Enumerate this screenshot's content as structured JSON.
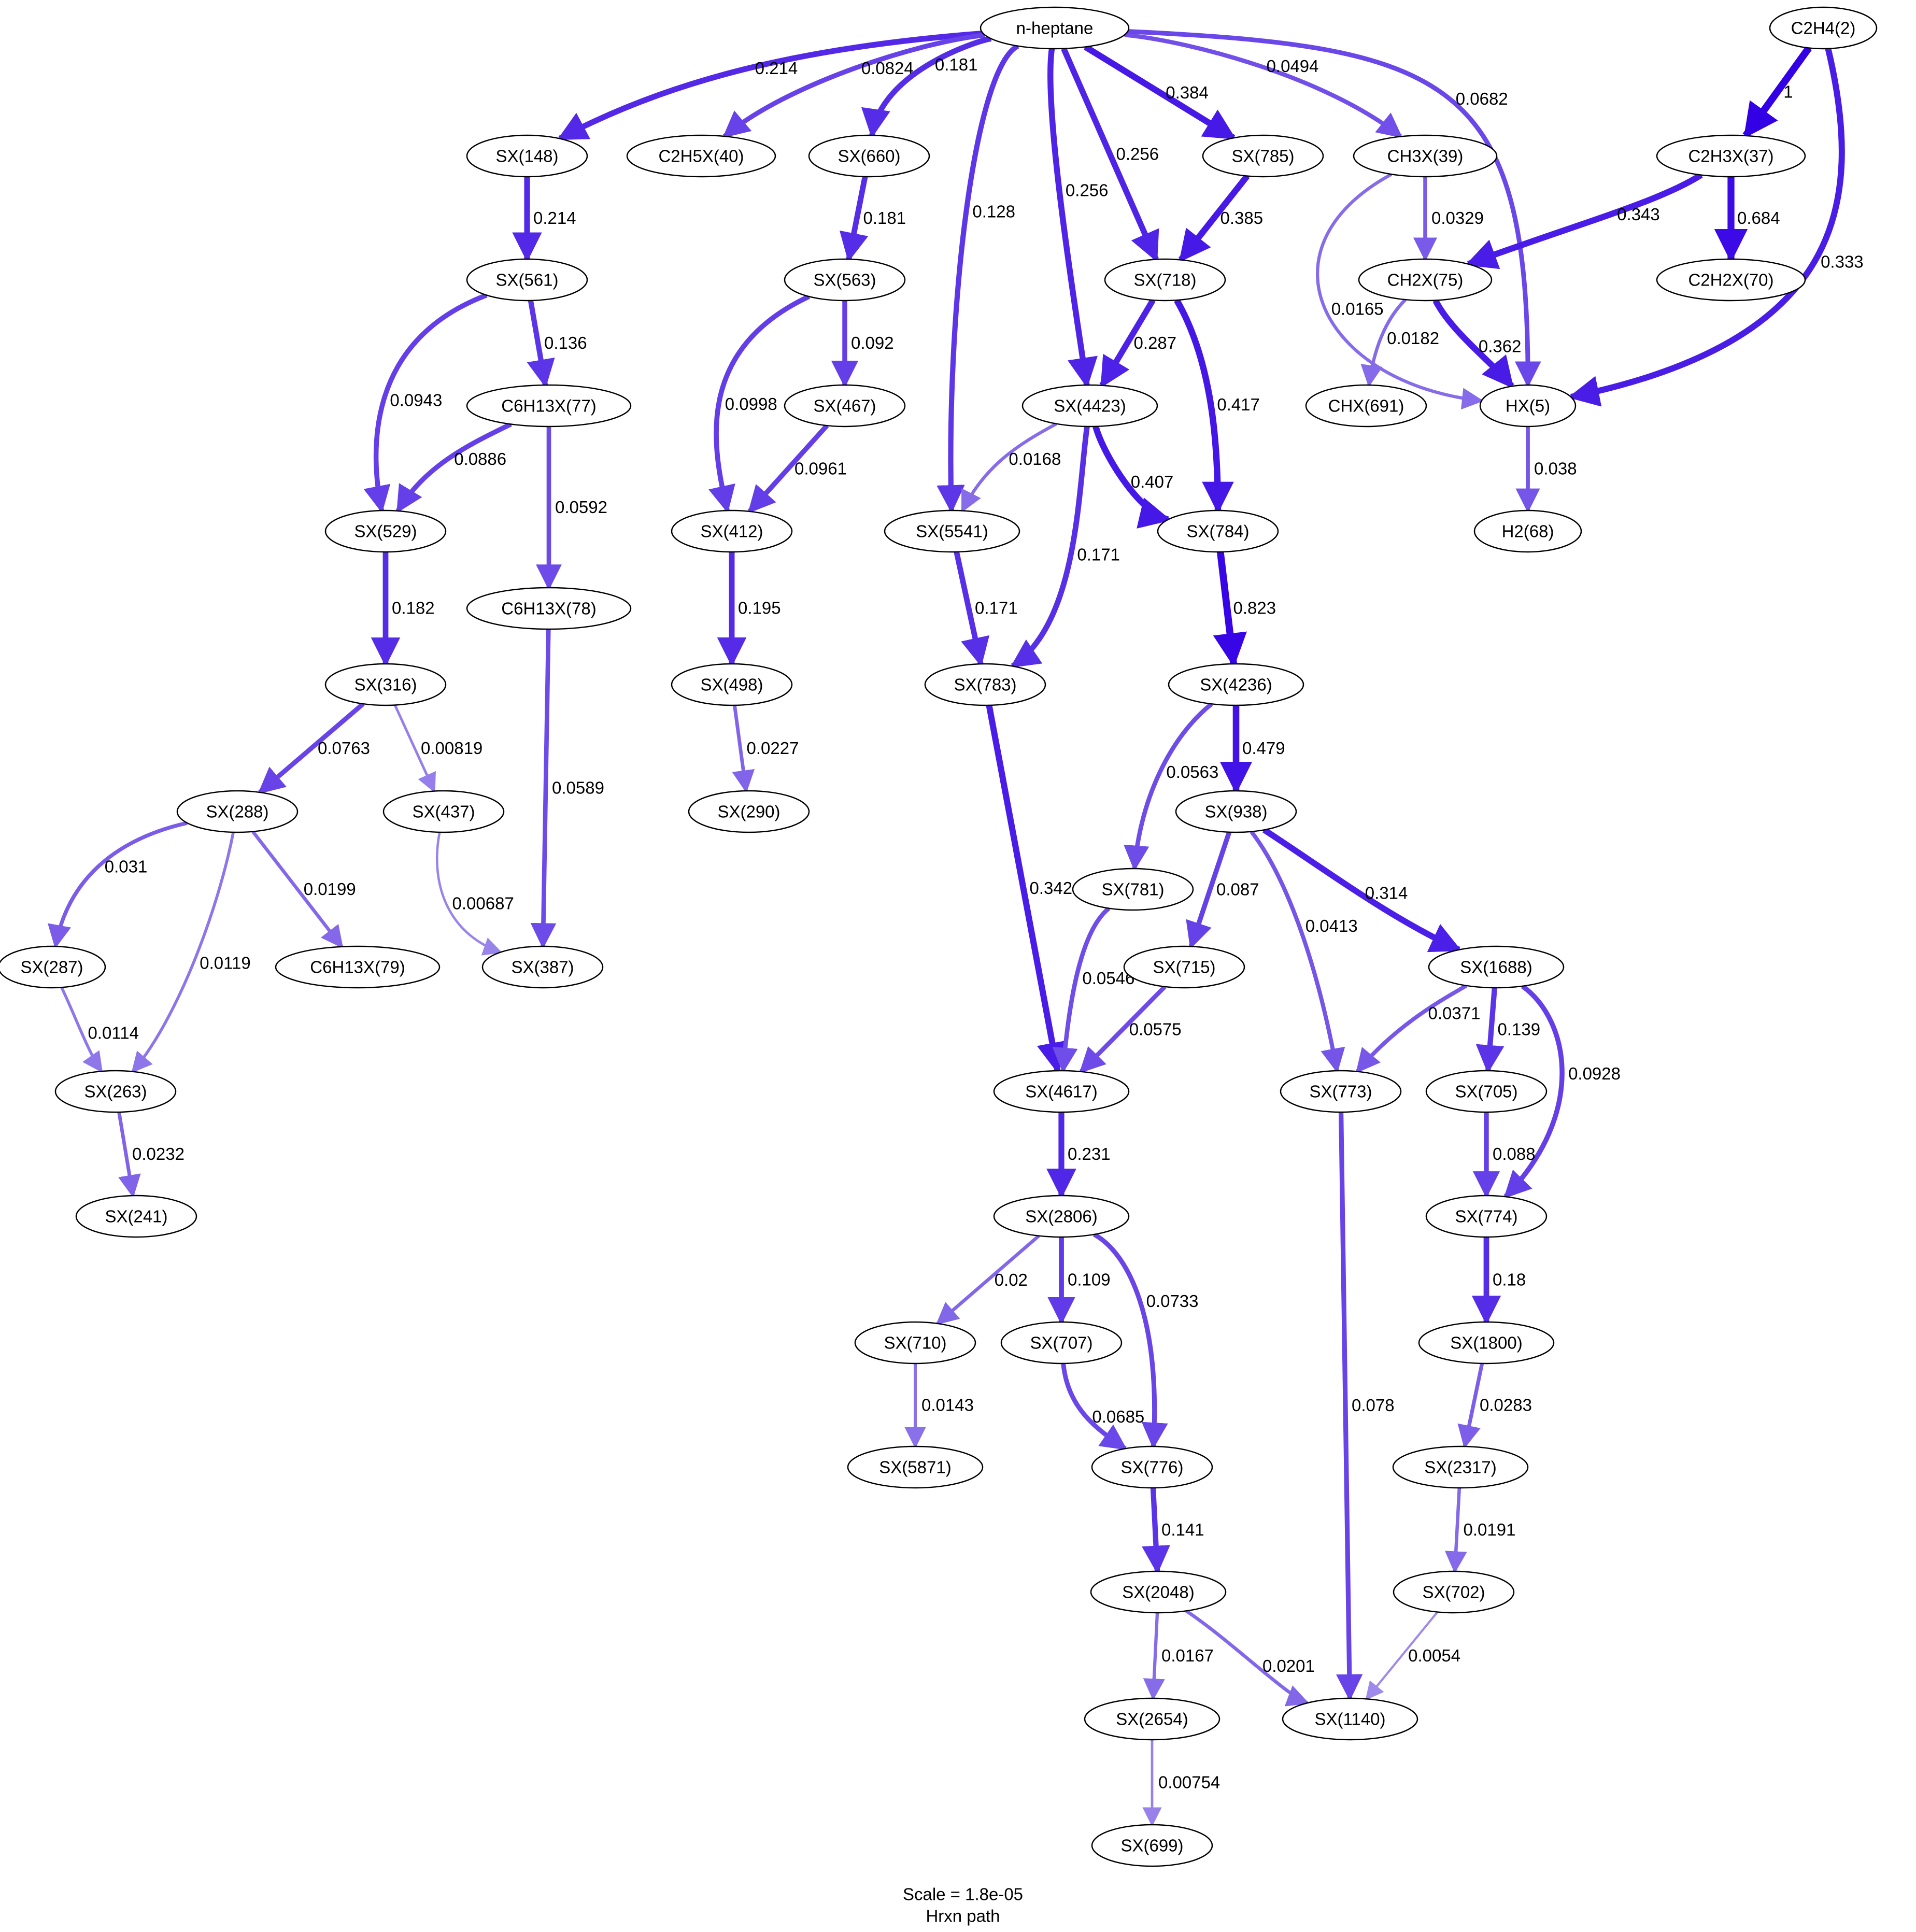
{
  "diagram": {
    "nodes": [
      {
        "id": "n-heptane",
        "label": "n-heptane"
      },
      {
        "id": "C2H4(2)",
        "label": "C2H4(2)"
      },
      {
        "id": "SX(148)",
        "label": "SX(148)"
      },
      {
        "id": "C2H5X(40)",
        "label": "C2H5X(40)"
      },
      {
        "id": "SX(660)",
        "label": "SX(660)"
      },
      {
        "id": "SX(785)",
        "label": "SX(785)"
      },
      {
        "id": "CH3X(39)",
        "label": "CH3X(39)"
      },
      {
        "id": "C2H3X(37)",
        "label": "C2H3X(37)"
      },
      {
        "id": "SX(561)",
        "label": "SX(561)"
      },
      {
        "id": "SX(563)",
        "label": "SX(563)"
      },
      {
        "id": "SX(718)",
        "label": "SX(718)"
      },
      {
        "id": "CH2X(75)",
        "label": "CH2X(75)"
      },
      {
        "id": "C2H2X(70)",
        "label": "C2H2X(70)"
      },
      {
        "id": "C6H13X(77)",
        "label": "C6H13X(77)"
      },
      {
        "id": "SX(467)",
        "label": "SX(467)"
      },
      {
        "id": "SX(4423)",
        "label": "SX(4423)"
      },
      {
        "id": "CHX(691)",
        "label": "CHX(691)"
      },
      {
        "id": "HX(5)",
        "label": "HX(5)"
      },
      {
        "id": "SX(529)",
        "label": "SX(529)"
      },
      {
        "id": "SX(412)",
        "label": "SX(412)"
      },
      {
        "id": "SX(5541)",
        "label": "SX(5541)"
      },
      {
        "id": "SX(784)",
        "label": "SX(784)"
      },
      {
        "id": "H2(68)",
        "label": "H2(68)"
      },
      {
        "id": "C6H13X(78)",
        "label": "C6H13X(78)"
      },
      {
        "id": "SX(316)",
        "label": "SX(316)"
      },
      {
        "id": "SX(498)",
        "label": "SX(498)"
      },
      {
        "id": "SX(783)",
        "label": "SX(783)"
      },
      {
        "id": "SX(4236)",
        "label": "SX(4236)"
      },
      {
        "id": "SX(288)",
        "label": "SX(288)"
      },
      {
        "id": "SX(437)",
        "label": "SX(437)"
      },
      {
        "id": "SX(290)",
        "label": "SX(290)"
      },
      {
        "id": "SX(938)",
        "label": "SX(938)"
      },
      {
        "id": "SX(781)",
        "label": "SX(781)"
      },
      {
        "id": "SX(287)",
        "label": "SX(287)"
      },
      {
        "id": "C6H13X(79)",
        "label": "C6H13X(79)"
      },
      {
        "id": "SX(387)",
        "label": "SX(387)"
      },
      {
        "id": "SX(715)",
        "label": "SX(715)"
      },
      {
        "id": "SX(1688)",
        "label": "SX(1688)"
      },
      {
        "id": "SX(263)",
        "label": "SX(263)"
      },
      {
        "id": "SX(4617)",
        "label": "SX(4617)"
      },
      {
        "id": "SX(773)",
        "label": "SX(773)"
      },
      {
        "id": "SX(705)",
        "label": "SX(705)"
      },
      {
        "id": "SX(241)",
        "label": "SX(241)"
      },
      {
        "id": "SX(2806)",
        "label": "SX(2806)"
      },
      {
        "id": "SX(774)",
        "label": "SX(774)"
      },
      {
        "id": "SX(710)",
        "label": "SX(710)"
      },
      {
        "id": "SX(707)",
        "label": "SX(707)"
      },
      {
        "id": "SX(1800)",
        "label": "SX(1800)"
      },
      {
        "id": "SX(5871)",
        "label": "SX(5871)"
      },
      {
        "id": "SX(776)",
        "label": "SX(776)"
      },
      {
        "id": "SX(2317)",
        "label": "SX(2317)"
      },
      {
        "id": "SX(2048)",
        "label": "SX(2048)"
      },
      {
        "id": "SX(702)",
        "label": "SX(702)"
      },
      {
        "id": "SX(2654)",
        "label": "SX(2654)"
      },
      {
        "id": "SX(1140)",
        "label": "SX(1140)"
      },
      {
        "id": "SX(699)",
        "label": "SX(699)"
      }
    ],
    "edges": [
      {
        "from": "n-heptane",
        "to": "SX(148)",
        "label": "0.214",
        "value": 0.214
      },
      {
        "from": "n-heptane",
        "to": "C2H5X(40)",
        "label": "0.0824",
        "value": 0.0824
      },
      {
        "from": "n-heptane",
        "to": "SX(660)",
        "label": "0.181",
        "value": 0.181
      },
      {
        "from": "n-heptane",
        "to": "SX(785)",
        "label": "0.384",
        "value": 0.384
      },
      {
        "from": "n-heptane",
        "to": "CH3X(39)",
        "label": "0.0494",
        "value": 0.0494
      },
      {
        "from": "n-heptane",
        "to": "SX(718)",
        "label": "0.256",
        "value": 0.256
      },
      {
        "from": "n-heptane",
        "to": "SX(4423)",
        "label": "0.256",
        "value": 0.256
      },
      {
        "from": "n-heptane",
        "to": "SX(5541)",
        "label": "0.128",
        "value": 0.128
      },
      {
        "from": "n-heptane",
        "to": "HX(5)",
        "label": "0.0682",
        "value": 0.0682
      },
      {
        "from": "C2H4(2)",
        "to": "C2H3X(37)",
        "label": "1",
        "value": 1
      },
      {
        "from": "C2H4(2)",
        "to": "HX(5)",
        "label": "0.333",
        "value": 0.333
      },
      {
        "from": "SX(148)",
        "to": "SX(561)",
        "label": "0.214",
        "value": 0.214
      },
      {
        "from": "SX(660)",
        "to": "SX(563)",
        "label": "0.181",
        "value": 0.181
      },
      {
        "from": "SX(785)",
        "to": "SX(718)",
        "label": "0.385",
        "value": 0.385
      },
      {
        "from": "CH3X(39)",
        "to": "CH2X(75)",
        "label": "0.0329",
        "value": 0.0329
      },
      {
        "from": "CH3X(39)",
        "to": "HX(5)",
        "label": "0.0165",
        "value": 0.0165
      },
      {
        "from": "C2H3X(37)",
        "to": "CH2X(75)",
        "label": "0.343",
        "value": 0.343
      },
      {
        "from": "C2H3X(37)",
        "to": "C2H2X(70)",
        "label": "0.684",
        "value": 0.684
      },
      {
        "from": "SX(561)",
        "to": "C6H13X(77)",
        "label": "0.136",
        "value": 0.136
      },
      {
        "from": "SX(561)",
        "to": "SX(529)",
        "label": "0.0943",
        "value": 0.0943
      },
      {
        "from": "SX(563)",
        "to": "SX(467)",
        "label": "0.092",
        "value": 0.092
      },
      {
        "from": "SX(563)",
        "to": "SX(412)",
        "label": "0.0998",
        "value": 0.0998
      },
      {
        "from": "SX(718)",
        "to": "SX(4423)",
        "label": "0.287",
        "value": 0.287
      },
      {
        "from": "SX(718)",
        "to": "SX(784)",
        "label": "0.417",
        "value": 0.417
      },
      {
        "from": "CH2X(75)",
        "to": "CHX(691)",
        "label": "0.0182",
        "value": 0.0182
      },
      {
        "from": "CH2X(75)",
        "to": "HX(5)",
        "label": "0.362",
        "value": 0.362
      },
      {
        "from": "C6H13X(77)",
        "to": "SX(529)",
        "label": "0.0886",
        "value": 0.0886
      },
      {
        "from": "C6H13X(77)",
        "to": "C6H13X(78)",
        "label": "0.0592",
        "value": 0.0592
      },
      {
        "from": "SX(467)",
        "to": "SX(412)",
        "label": "0.0961",
        "value": 0.0961
      },
      {
        "from": "SX(4423)",
        "to": "SX(5541)",
        "label": "0.0168",
        "value": 0.0168
      },
      {
        "from": "SX(4423)",
        "to": "SX(784)",
        "label": "0.407",
        "value": 0.407
      },
      {
        "from": "SX(4423)",
        "to": "SX(783)",
        "label": "0.171",
        "value": 0.171
      },
      {
        "from": "HX(5)",
        "to": "H2(68)",
        "label": "0.038",
        "value": 0.038
      },
      {
        "from": "SX(529)",
        "to": "SX(316)",
        "label": "0.182",
        "value": 0.182
      },
      {
        "from": "SX(412)",
        "to": "SX(498)",
        "label": "0.195",
        "value": 0.195
      },
      {
        "from": "SX(5541)",
        "to": "SX(783)",
        "label": "0.171",
        "value": 0.171
      },
      {
        "from": "SX(784)",
        "to": "SX(4236)",
        "label": "0.823",
        "value": 0.823
      },
      {
        "from": "C6H13X(78)",
        "to": "SX(387)",
        "label": "0.0589",
        "value": 0.0589
      },
      {
        "from": "SX(316)",
        "to": "SX(288)",
        "label": "0.0763",
        "value": 0.0763
      },
      {
        "from": "SX(316)",
        "to": "SX(437)",
        "label": "0.00819",
        "value": 0.00819
      },
      {
        "from": "SX(498)",
        "to": "SX(290)",
        "label": "0.0227",
        "value": 0.0227
      },
      {
        "from": "SX(783)",
        "to": "SX(4617)",
        "label": "0.342",
        "value": 0.342
      },
      {
        "from": "SX(4236)",
        "to": "SX(781)",
        "label": "0.0563",
        "value": 0.0563
      },
      {
        "from": "SX(4236)",
        "to": "SX(938)",
        "label": "0.479",
        "value": 0.479
      },
      {
        "from": "SX(288)",
        "to": "SX(287)",
        "label": "0.031",
        "value": 0.031
      },
      {
        "from": "SX(288)",
        "to": "SX(263)",
        "label": "0.0119",
        "value": 0.0119
      },
      {
        "from": "SX(288)",
        "to": "C6H13X(79)",
        "label": "0.0199",
        "value": 0.0199
      },
      {
        "from": "SX(437)",
        "to": "SX(387)",
        "label": "0.00687",
        "value": 0.00687
      },
      {
        "from": "SX(938)",
        "to": "SX(715)",
        "label": "0.087",
        "value": 0.087
      },
      {
        "from": "SX(938)",
        "to": "SX(773)",
        "label": "0.0413",
        "value": 0.0413
      },
      {
        "from": "SX(938)",
        "to": "SX(1688)",
        "label": "0.314",
        "value": 0.314
      },
      {
        "from": "SX(781)",
        "to": "SX(4617)",
        "label": "0.0546",
        "value": 0.0546
      },
      {
        "from": "SX(287)",
        "to": "SX(263)",
        "label": "0.0114",
        "value": 0.0114
      },
      {
        "from": "SX(715)",
        "to": "SX(4617)",
        "label": "0.0575",
        "value": 0.0575
      },
      {
        "from": "SX(1688)",
        "to": "SX(773)",
        "label": "0.0371",
        "value": 0.0371
      },
      {
        "from": "SX(1688)",
        "to": "SX(705)",
        "label": "0.139",
        "value": 0.139
      },
      {
        "from": "SX(1688)",
        "to": "SX(774)",
        "label": "0.0928",
        "value": 0.0928
      },
      {
        "from": "SX(263)",
        "to": "SX(241)",
        "label": "0.0232",
        "value": 0.0232
      },
      {
        "from": "SX(4617)",
        "to": "SX(2806)",
        "label": "0.231",
        "value": 0.231
      },
      {
        "from": "SX(773)",
        "to": "SX(1140)",
        "label": "0.078",
        "value": 0.078
      },
      {
        "from": "SX(705)",
        "to": "SX(774)",
        "label": "0.088",
        "value": 0.088
      },
      {
        "from": "SX(2806)",
        "to": "SX(710)",
        "label": "0.02",
        "value": 0.02
      },
      {
        "from": "SX(2806)",
        "to": "SX(707)",
        "label": "0.109",
        "value": 0.109
      },
      {
        "from": "SX(2806)",
        "to": "SX(776)",
        "label": "0.0733",
        "value": 0.0733
      },
      {
        "from": "SX(774)",
        "to": "SX(1800)",
        "label": "0.18",
        "value": 0.18
      },
      {
        "from": "SX(710)",
        "to": "SX(5871)",
        "label": "0.0143",
        "value": 0.0143
      },
      {
        "from": "SX(707)",
        "to": "SX(776)",
        "label": "0.0685",
        "value": 0.0685
      },
      {
        "from": "SX(1800)",
        "to": "SX(2317)",
        "label": "0.0283",
        "value": 0.0283
      },
      {
        "from": "SX(776)",
        "to": "SX(2048)",
        "label": "0.141",
        "value": 0.141
      },
      {
        "from": "SX(2317)",
        "to": "SX(702)",
        "label": "0.0191",
        "value": 0.0191
      },
      {
        "from": "SX(2048)",
        "to": "SX(2654)",
        "label": "0.0167",
        "value": 0.0167
      },
      {
        "from": "SX(2048)",
        "to": "SX(1140)",
        "label": "0.0201",
        "value": 0.0201
      },
      {
        "from": "SX(702)",
        "to": "SX(1140)",
        "label": "0.0054",
        "value": 0.0054
      },
      {
        "from": "SX(2654)",
        "to": "SX(699)",
        "label": "0.00754",
        "value": 0.00754
      }
    ]
  },
  "caption": {
    "scale": "Scale = 1.8e-05",
    "title": "Hrxn path"
  },
  "colors": {
    "strong": "#3300e6",
    "weak": "#a08cea",
    "node_stroke": "#000000",
    "node_fill": "#ffffff"
  }
}
